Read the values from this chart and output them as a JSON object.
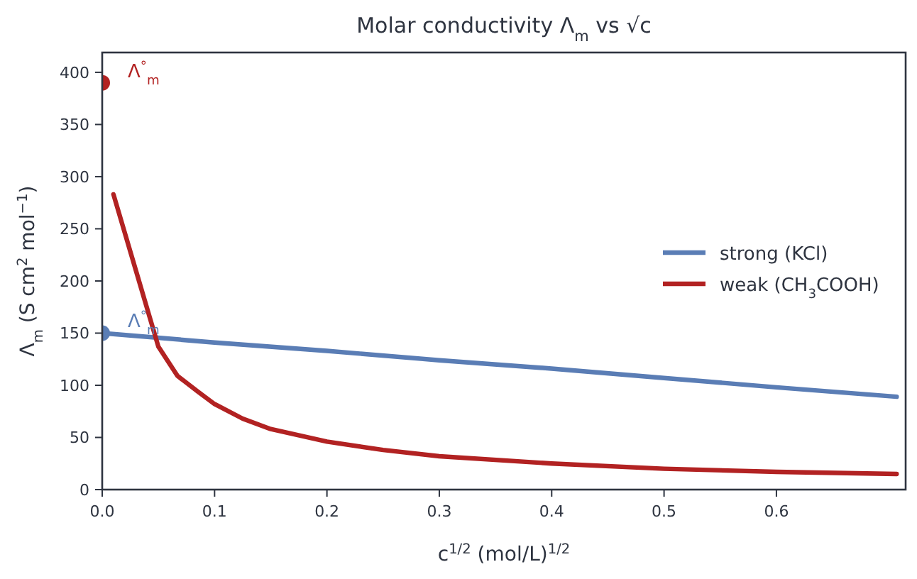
{
  "chart_data": {
    "type": "line",
    "title": "Molar conductivity Λ$_{m}$ vs √c",
    "xlabel": "c$^{1/2}$ (mol/L)$^{1/2}$",
    "ylabel": "Λ$_{m}$ (S cm$^{2}$ mol$^{−1}$)",
    "xlim": [
      0,
      0.715
    ],
    "xticks": [
      {
        "value": 0,
        "label": "0.0"
      },
      0.1,
      0.2,
      0.3,
      0.4,
      0.5,
      0.6
    ],
    "ylim": [
      0,
      419
    ],
    "yticks": [
      0,
      50,
      100,
      150,
      200,
      250,
      300,
      350,
      400
    ],
    "grid": false,
    "legend": "right",
    "line_style": "solid",
    "series": [
      {
        "name": "strong (KCl)",
        "color": "#5a7db5",
        "x": [
          0,
          0.1,
          0.2,
          0.3,
          0.4,
          0.5,
          0.6,
          0.707
        ],
        "values": [
          150,
          141,
          133,
          124,
          116,
          107,
          98,
          89
        ]
      },
      {
        "name": "weak (CH$_{3}$COOH)",
        "color": "#b22222",
        "x": [
          0.01,
          0.03,
          0.05,
          0.067,
          0.085,
          0.1,
          0.125,
          0.15,
          0.2,
          0.25,
          0.3,
          0.4,
          0.5,
          0.6,
          0.707
        ],
        "values": [
          283,
          210,
          137,
          109,
          94,
          82,
          68,
          58,
          46,
          38,
          32,
          25,
          20,
          17,
          15
        ]
      },
      {
        "type": "scatter",
        "color": "#b22222",
        "x": [
          0
        ],
        "values": [
          390
        ],
        "marker": "circle"
      },
      {
        "type": "scatter",
        "color": "#5a7db5",
        "x": [
          0
        ],
        "values": [
          150
        ],
        "marker": "circle"
      }
    ],
    "annotations": [
      {
        "text": "Λ$^{°}$$_{m}$",
        "x": 0,
        "y": 390
      },
      {
        "text": "Λ$^{°}$$_{m}$",
        "x": 0,
        "y": 150
      }
    ]
  }
}
